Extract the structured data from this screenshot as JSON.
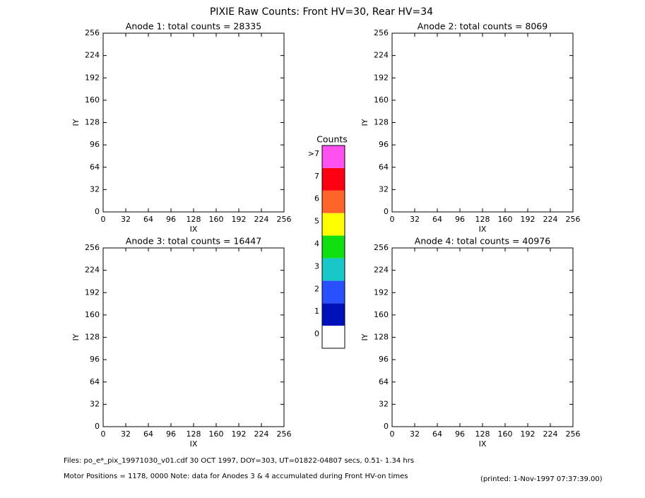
{
  "title": "PIXIE Raw Counts:  Front HV=30, Rear HV=34",
  "chart_data": [
    {
      "type": "heatmap",
      "title": "Anode 1: total counts = 28335",
      "xlabel": "IX",
      "ylabel": "IY",
      "xlim": [
        0,
        256
      ],
      "ylim": [
        0,
        256
      ],
      "xticks": [
        0,
        32,
        64,
        96,
        128,
        160,
        192,
        224,
        256
      ],
      "yticks": [
        0,
        32,
        64,
        96,
        128,
        160,
        192,
        224,
        256
      ]
    },
    {
      "type": "heatmap",
      "title": "Anode 2: total counts = 8069",
      "xlabel": "IX",
      "ylabel": "IY",
      "xlim": [
        0,
        256
      ],
      "ylim": [
        0,
        256
      ],
      "xticks": [
        0,
        32,
        64,
        96,
        128,
        160,
        192,
        224,
        256
      ],
      "yticks": [
        0,
        32,
        64,
        96,
        128,
        160,
        192,
        224,
        256
      ]
    },
    {
      "type": "heatmap",
      "title": "Anode 3: total counts = 16447",
      "xlabel": "IX",
      "ylabel": "IY",
      "xlim": [
        0,
        256
      ],
      "ylim": [
        0,
        256
      ],
      "xticks": [
        0,
        32,
        64,
        96,
        128,
        160,
        192,
        224,
        256
      ],
      "yticks": [
        0,
        32,
        64,
        96,
        128,
        160,
        192,
        224,
        256
      ]
    },
    {
      "type": "heatmap",
      "title": "Anode 4: total counts = 40976",
      "xlabel": "IX",
      "ylabel": "IY",
      "xlim": [
        0,
        256
      ],
      "ylim": [
        0,
        256
      ],
      "xticks": [
        0,
        32,
        64,
        96,
        128,
        160,
        192,
        224,
        256
      ],
      "yticks": [
        0,
        32,
        64,
        96,
        128,
        160,
        192,
        224,
        256
      ]
    }
  ],
  "colorbar": {
    "title": "Counts",
    "labels": [
      "0",
      "1",
      "2",
      "3",
      "4",
      "5",
      "6",
      "7",
      ">7"
    ],
    "colors": [
      "#ffffff",
      "#0010b8",
      "#2850ff",
      "#18c8c8",
      "#10e010",
      "#ffff00",
      "#ff6428",
      "#ff0010",
      "#ff50f0"
    ]
  },
  "footer": {
    "files": "Files: po_e*_pix_19971030_v01.cdf    30 OCT 1997, DOY=303, UT=01822-04807 secs,  0.51- 1.34 hrs",
    "motor": "Motor Positions = 1178, 0000   Note: data for Anodes 3 & 4 accumulated during Front HV-on times",
    "printed": "(printed:  1-Nov-1997 07:37:39.00)"
  }
}
